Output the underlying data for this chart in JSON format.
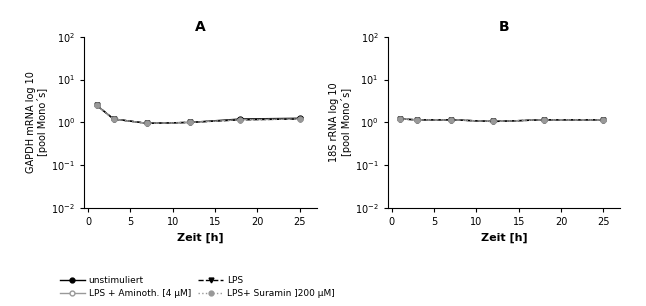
{
  "x": [
    1,
    3,
    7,
    12,
    18,
    25
  ],
  "A_unstimuliert": [
    2.5,
    1.2,
    0.95,
    1.0,
    1.2,
    1.25
  ],
  "A_LPS": [
    2.5,
    1.2,
    0.95,
    1.0,
    1.15,
    1.2
  ],
  "A_LPS_Aminoth": [
    2.5,
    1.2,
    0.95,
    1.0,
    1.15,
    1.2
  ],
  "A_LPS_Suramin": [
    2.5,
    1.2,
    0.95,
    1.0,
    1.15,
    1.2
  ],
  "B_unstimuliert": [
    1.2,
    1.15,
    1.15,
    1.05,
    1.15,
    1.15
  ],
  "B_LPS": [
    1.2,
    1.15,
    1.15,
    1.05,
    1.15,
    1.15
  ],
  "B_LPS_Aminoth": [
    1.2,
    1.15,
    1.15,
    1.05,
    1.15,
    1.15
  ],
  "B_LPS_Suramin": [
    1.2,
    1.15,
    1.15,
    1.05,
    1.15,
    1.15
  ],
  "ylim": [
    0.01,
    100
  ],
  "xlim": [
    -0.5,
    27
  ],
  "xticks": [
    0,
    5,
    10,
    15,
    20,
    25
  ],
  "title_A": "A",
  "title_B": "B",
  "ylabel_A": "GAPDH mRNA log 10\n[pool Mono´s]",
  "ylabel_B": "18S rRNA log 10\n[pool Mono´s]",
  "xlabel": "Zeit [h]",
  "legend_labels": [
    "unstimuliert",
    "LPS + Aminoth. [4 µM]",
    "LPS",
    "LPS+ Suramin ]200 µM]"
  ],
  "bg_color": "#ffffff",
  "line_color": "#000000",
  "gray_color": "#999999"
}
